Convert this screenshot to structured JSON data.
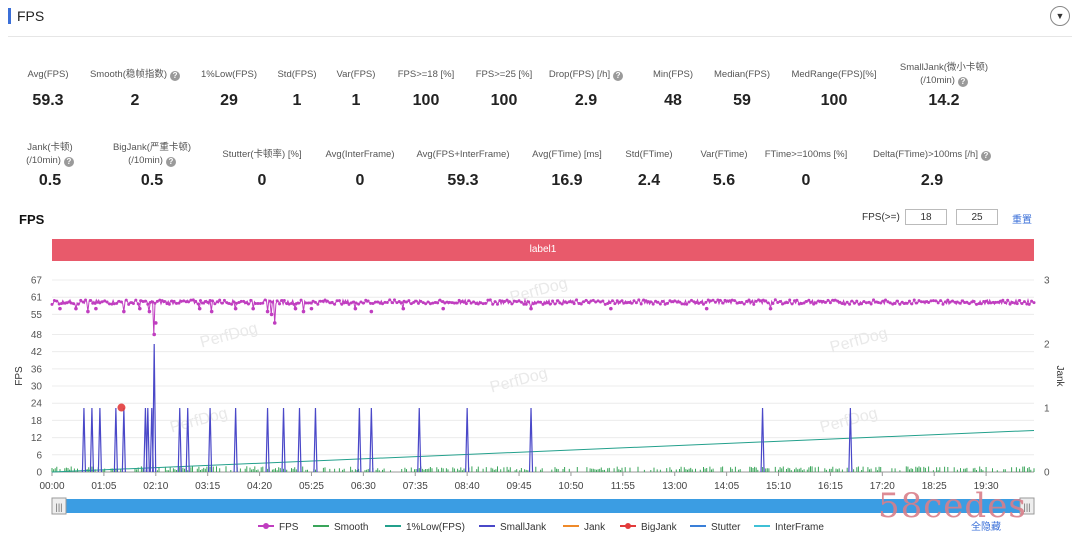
{
  "header": {
    "title": "FPS"
  },
  "stats_row1": [
    {
      "label": "Avg(FPS)",
      "value": "59.3",
      "help": false
    },
    {
      "label": "Smooth(稳帧指数)",
      "value": "2",
      "help": true
    },
    {
      "label": "1%Low(FPS)",
      "value": "29",
      "help": false
    },
    {
      "label": "Std(FPS)",
      "value": "1",
      "help": false
    },
    {
      "label": "Var(FPS)",
      "value": "1",
      "help": false
    },
    {
      "label": "FPS>=18 [%]",
      "value": "100",
      "help": false
    },
    {
      "label": "FPS>=25 [%]",
      "value": "100",
      "help": false
    },
    {
      "label": "Drop(FPS) [/h]",
      "value": "2.9",
      "help": true
    },
    {
      "label": "Min(FPS)",
      "value": "48",
      "help": false
    },
    {
      "label": "Median(FPS)",
      "value": "59",
      "help": false
    },
    {
      "label": "MedRange(FPS)[%]",
      "value": "100",
      "help": false
    },
    {
      "label": "SmallJank(微小卡顿)",
      "label2": "(/10min)",
      "value": "14.2",
      "help": true
    }
  ],
  "stats_row2": [
    {
      "label": "Jank(卡顿)",
      "label2": "(/10min)",
      "value": "0.5",
      "help": true
    },
    {
      "label": "BigJank(严重卡顿)",
      "label2": "(/10min)",
      "value": "0.5",
      "help": true
    },
    {
      "label": "Stutter(卡顿率) [%]",
      "value": "0",
      "help": false
    },
    {
      "label": "Avg(InterFrame)",
      "value": "0",
      "help": false
    },
    {
      "label": "Avg(FPS+InterFrame)",
      "value": "59.3",
      "help": false
    },
    {
      "label": "Avg(FTime) [ms]",
      "value": "16.9",
      "help": false
    },
    {
      "label": "Std(FTime)",
      "value": "2.4",
      "help": false
    },
    {
      "label": "Var(FTime)",
      "value": "5.6",
      "help": false
    },
    {
      "label": "FTime>=100ms [%]",
      "value": "0",
      "help": false
    },
    {
      "label": "Delta(FTime)>100ms [/h]",
      "value": "2.9",
      "help": true
    }
  ],
  "chart_section": {
    "title": "FPS",
    "fps_threshold_label": "FPS(>=)",
    "threshold_low": "18",
    "threshold_high": "25",
    "reset_label": "重置",
    "label_bar": "label1",
    "toggle_all_label": "全隐藏",
    "watermark_brand": "PerfDog",
    "corner_watermark": "58cedes"
  },
  "chart_data": {
    "type": "line",
    "y_left": {
      "label": "FPS",
      "ticks": [
        0,
        6,
        12,
        18,
        24,
        30,
        36,
        42,
        48,
        55,
        61,
        67
      ],
      "range": [
        0,
        67
      ]
    },
    "y_right": {
      "label": "Jank",
      "ticks": [
        0,
        1,
        2,
        3
      ],
      "range": [
        0,
        3
      ]
    },
    "x_ticks": [
      "00:00",
      "01:05",
      "02:10",
      "03:15",
      "04:20",
      "05:25",
      "06:30",
      "07:35",
      "08:40",
      "09:45",
      "10:50",
      "11:55",
      "13:00",
      "14:05",
      "15:10",
      "16:15",
      "17:20",
      "18:25",
      "19:30"
    ],
    "x_range_seconds": [
      0,
      1230
    ],
    "series": [
      {
        "name": "FPS",
        "color": "#c03ec0",
        "baseline": 59.3,
        "dips": [
          [
            10,
            57
          ],
          [
            30,
            57
          ],
          [
            45,
            56
          ],
          [
            55,
            57
          ],
          [
            90,
            56
          ],
          [
            110,
            57
          ],
          [
            122,
            56
          ],
          [
            128,
            48
          ],
          [
            130,
            52
          ],
          [
            185,
            57
          ],
          [
            200,
            56
          ],
          [
            230,
            57
          ],
          [
            252,
            57
          ],
          [
            270,
            56
          ],
          [
            275,
            55
          ],
          [
            279,
            52
          ],
          [
            305,
            57
          ],
          [
            315,
            56
          ],
          [
            325,
            57
          ],
          [
            380,
            57
          ],
          [
            400,
            56
          ],
          [
            440,
            57
          ],
          [
            490,
            57
          ],
          [
            600,
            57
          ],
          [
            700,
            57
          ],
          [
            820,
            57
          ],
          [
            900,
            57
          ]
        ]
      },
      {
        "name": "Smooth",
        "color": "#3aa55a"
      },
      {
        "name": "1%Low(FPS)",
        "color": "#23a08c",
        "start": 0,
        "end": 14.5
      },
      {
        "name": "SmallJank",
        "color": "#4a48c8",
        "spikes": [
          [
            40,
            1
          ],
          [
            50,
            1
          ],
          [
            60,
            1
          ],
          [
            80,
            1
          ],
          [
            90,
            1
          ],
          [
            117,
            1
          ],
          [
            120,
            1
          ],
          [
            125,
            1
          ],
          [
            128,
            2
          ],
          [
            160,
            1
          ],
          [
            170,
            1
          ],
          [
            198,
            1
          ],
          [
            230,
            1
          ],
          [
            270,
            1
          ],
          [
            290,
            1
          ],
          [
            310,
            1
          ],
          [
            330,
            1
          ],
          [
            385,
            1
          ],
          [
            400,
            1
          ],
          [
            460,
            1
          ],
          [
            520,
            1
          ],
          [
            600,
            1
          ],
          [
            890,
            1
          ],
          [
            1000,
            1
          ]
        ]
      },
      {
        "name": "Jank",
        "color": "#ef8a2a"
      },
      {
        "name": "BigJank",
        "color": "#e23b3b",
        "points": [
          [
            87,
            1
          ]
        ]
      },
      {
        "name": "Stutter",
        "color": "#3a7fd8"
      },
      {
        "name": "InterFrame",
        "color": "#3fc0d6"
      }
    ]
  }
}
